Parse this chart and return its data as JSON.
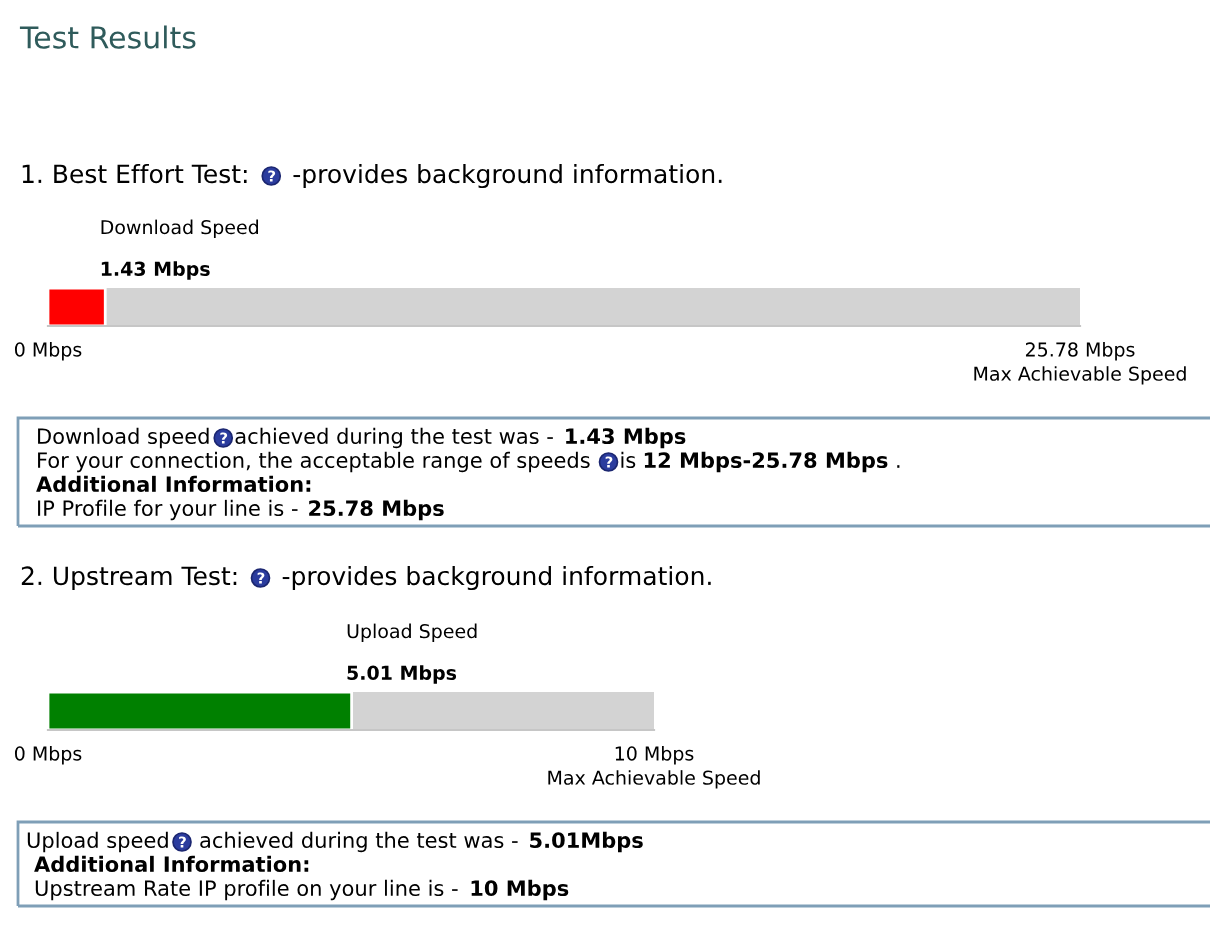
{
  "chart_data": [
    {
      "type": "bar",
      "orientation": "horizontal",
      "title": "1. Best Effort Test:",
      "subtitle": "-provides background information.",
      "categories": [
        "Download Speed"
      ],
      "values": [
        1.43
      ],
      "color": "#ff0000",
      "xlim": [
        0,
        25.78
      ],
      "xticks": [
        {
          "value": 0,
          "label": "0 Mbps"
        },
        {
          "value": 25.78,
          "label": "25.78 Mbps\nMax Achievable Speed"
        }
      ],
      "annotations": [
        "Test Results",
        "Download speed",
        "achieved during the test was -",
        "1.43 Mbps",
        "For your connection, the acceptable range of speeds",
        "is",
        "12 Mbps-25.78 Mbps",
        ".",
        "Additional Information:",
        "IP Profile for your line is -",
        "25.78 Mbps",
        "1.43 Mbps"
      ]
    },
    {
      "type": "bar",
      "orientation": "horizontal",
      "title": "2. Upstream Test:",
      "subtitle": "-provides background information.",
      "categories": [
        "Upload Speed"
      ],
      "values": [
        5.01
      ],
      "color": "#008000",
      "xlim": [
        0,
        10
      ],
      "xticks": [
        {
          "value": 0,
          "label": "0 Mbps"
        },
        {
          "value": 10,
          "label": "10 Mbps\nMax Achievable Speed"
        }
      ],
      "annotations": [
        "Upload speed",
        "achieved during the test was -",
        "5.01Mbps",
        "Additional Information:",
        "Upstream Rate IP profile on your line is -",
        "10 Mbps",
        "5.01 Mbps"
      ]
    }
  ]
}
